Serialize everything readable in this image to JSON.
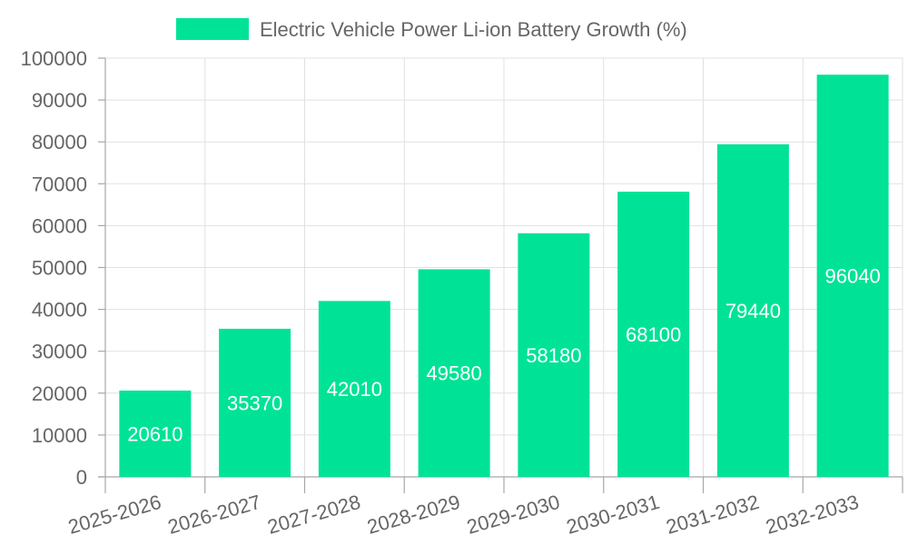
{
  "chart_data": {
    "type": "bar",
    "title": "",
    "xlabel": "",
    "ylabel": "",
    "categories": [
      "2025-2026",
      "2026-2027",
      "2027-2028",
      "2028-2029",
      "2029-2030",
      "2030-2031",
      "2031-2032",
      "2032-2033"
    ],
    "series": [
      {
        "name": "Electric Vehicle Power Li-ion Battery Growth (%)",
        "values": [
          20610,
          35370,
          42010,
          49580,
          58180,
          68100,
          79440,
          96040
        ],
        "color": "#00e396"
      }
    ],
    "ylim": [
      0,
      100000
    ],
    "yticks": [
      0,
      10000,
      20000,
      30000,
      40000,
      50000,
      60000,
      70000,
      80000,
      90000,
      100000
    ],
    "grid": true,
    "legend_position": "top-center",
    "data_labels": true,
    "data_label_color": "#ffffff"
  }
}
